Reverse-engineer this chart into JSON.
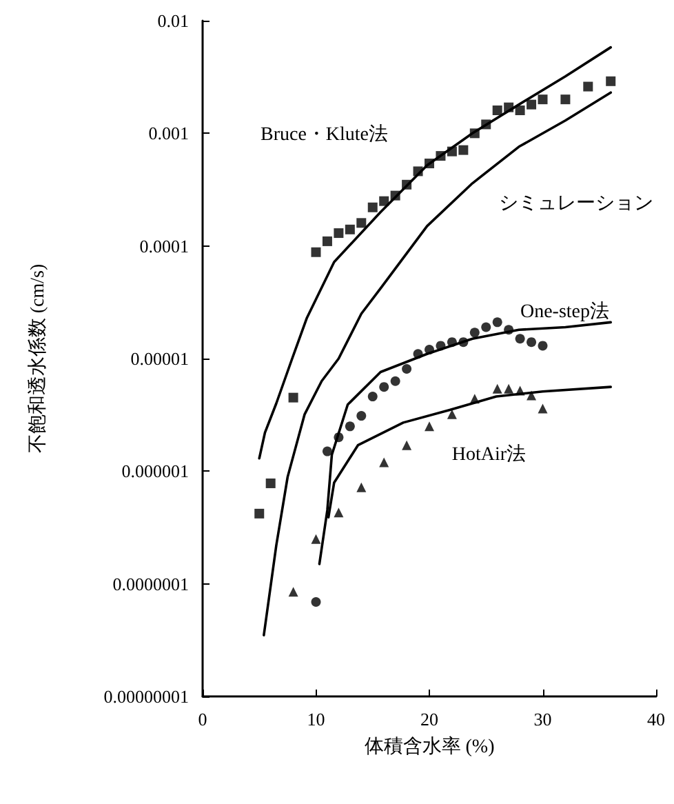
{
  "chart_data": {
    "type": "scatter",
    "xlabel": "体積含水率 (%)",
    "ylabel": "不飽和透水係数 (cm/s)",
    "log": "y",
    "xlim": [
      0,
      40
    ],
    "xticks": [
      0,
      10,
      20,
      30,
      40
    ],
    "ylim": [
      1e-08,
      0.01
    ],
    "yticks": [
      {
        "value": 0.01,
        "label": "0.01"
      },
      {
        "value": 0.001,
        "label": "0.001"
      },
      {
        "value": 0.0001,
        "label": "0.0001"
      },
      {
        "value": 1e-05,
        "label": "0.00001"
      },
      {
        "value": 1e-06,
        "label": "0.000001"
      },
      {
        "value": 1e-07,
        "label": "0.0000001"
      },
      {
        "value": 1e-08,
        "label": "0.00000001"
      }
    ],
    "series": [
      {
        "name": "Bruce・Klute法",
        "marker": "square",
        "color": "#000000",
        "x": [
          5,
          6,
          8,
          10,
          11,
          12,
          13,
          14,
          15,
          16,
          17,
          18,
          19,
          20,
          21,
          22,
          23,
          24,
          25,
          26,
          27,
          28,
          29,
          30,
          32,
          34,
          36
        ],
        "values": [
          4.2e-07,
          7.8e-07,
          4.5e-06,
          8.8e-05,
          0.00011,
          0.00013,
          0.00014,
          0.00016,
          0.00022,
          0.00025,
          0.00028,
          0.00035,
          0.00046,
          0.00054,
          0.00063,
          0.00069,
          0.00071,
          0.001,
          0.0012,
          0.0016,
          0.0017,
          0.0016,
          0.0018,
          0.002,
          0.002,
          0.0026,
          0.0029
        ]
      },
      {
        "name": "One-step法",
        "marker": "circle",
        "color": "#000000",
        "x": [
          10,
          11,
          12,
          13,
          14,
          15,
          16,
          17,
          18,
          19,
          20,
          21,
          22,
          23,
          24,
          25,
          26,
          27,
          28,
          29,
          30
        ],
        "values": [
          6.9e-08,
          1.5e-06,
          2e-06,
          2.5e-06,
          3.1e-06,
          4.6e-06,
          5.6e-06,
          6.3e-06,
          8.1e-06,
          1.1e-05,
          1.2e-05,
          1.3e-05,
          1.4e-05,
          1.4e-05,
          1.7e-05,
          1.9e-05,
          2.1e-05,
          1.8e-05,
          1.5e-05,
          1.4e-05,
          1.3e-05
        ]
      },
      {
        "name": "HotAir法",
        "marker": "triangle",
        "color": "#000000",
        "x": [
          8,
          10,
          12,
          14,
          16,
          18,
          20,
          22,
          24,
          26,
          27,
          28,
          29,
          30
        ],
        "values": [
          8.5e-08,
          2.5e-07,
          4.3e-07,
          7.2e-07,
          1.2e-06,
          1.7e-06,
          2.5e-06,
          3.2e-06,
          4.4e-06,
          5.4e-06,
          5.4e-06,
          5.2e-06,
          4.7e-06,
          3.6e-06
        ]
      },
      {
        "type": "line",
        "marker": "none",
        "line_style": "solid",
        "color": "#000000",
        "x": [
          5,
          5.5,
          6.5,
          7.9,
          9.2,
          11.6,
          15.7,
          19.8,
          23.8,
          27.9,
          32,
          36
        ],
        "values": [
          1.3e-06,
          2.2e-06,
          4e-06,
          1e-05,
          2.3e-05,
          7.2e-05,
          0.0002,
          0.00052,
          0.001,
          0.0018,
          0.0032,
          0.0058
        ]
      },
      {
        "name": "シミュレーション",
        "type": "line",
        "marker": "none",
        "line_style": "solid",
        "color": "#000000",
        "x": [
          5.4,
          6.5,
          7.5,
          9,
          10.5,
          12,
          14,
          15.7,
          19.8,
          23.8,
          27.9,
          32,
          36
        ],
        "values": [
          3.5e-08,
          2.2e-07,
          8.9e-07,
          3.2e-06,
          6.3e-06,
          1e-05,
          2.5e-05,
          4.2e-05,
          0.00015,
          0.00036,
          0.00076,
          0.0013,
          0.0023
        ]
      },
      {
        "type": "line",
        "marker": "none",
        "line_style": "solid",
        "color": "#000000",
        "x": [
          10.3,
          11,
          11.4,
          12.8,
          15.7,
          19.8,
          23.8,
          27.9,
          32,
          36
        ],
        "values": [
          1.5e-07,
          4.5e-07,
          1.4e-06,
          3.9e-06,
          7.6e-06,
          1.1e-05,
          1.5e-05,
          1.8e-05,
          1.9e-05,
          2.1e-05
        ]
      },
      {
        "type": "line",
        "marker": "none",
        "line_style": "solid",
        "color": "#000000",
        "x": [
          11.1,
          11.6,
          13.7,
          17.7,
          21.8,
          25.9,
          30,
          36
        ],
        "values": [
          3.9e-07,
          7.9e-07,
          1.7e-06,
          2.7e-06,
          3.5e-06,
          4.6e-06,
          5.1e-06,
          5.6e-06
        ]
      }
    ]
  }
}
